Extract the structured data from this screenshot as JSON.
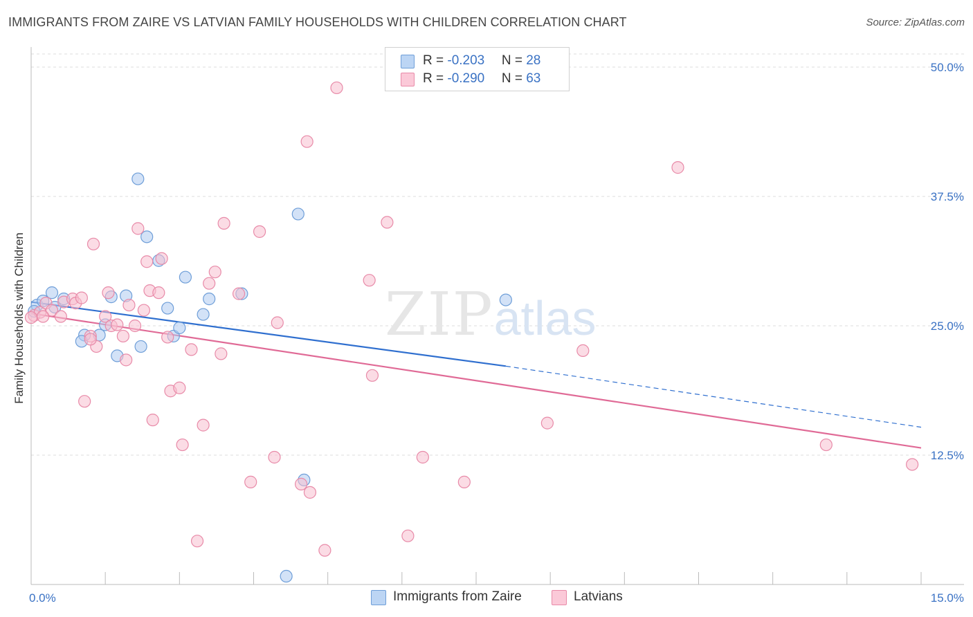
{
  "title": "IMMIGRANTS FROM ZAIRE VS LATVIAN FAMILY HOUSEHOLDS WITH CHILDREN CORRELATION CHART",
  "source": "Source: ZipAtlas.com",
  "watermark": {
    "zip": "ZIP",
    "atlas": "atlas"
  },
  "legend": {
    "series1": {
      "r_label": "R = ",
      "r_value": "-0.203",
      "n_label": "N = ",
      "n_value": "28"
    },
    "series2": {
      "r_label": "R = ",
      "r_value": "-0.290",
      "n_label": "N = ",
      "n_value": "63"
    }
  },
  "bottom_legend": {
    "series1": "Immigrants from Zaire",
    "series2": "Latvians"
  },
  "colors": {
    "blue_fill": "#aecbf0",
    "blue_stroke": "#6e9ed8",
    "blue_line": "#2f6fcf",
    "pink_fill": "#f7bfd0",
    "pink_stroke": "#e88aa8",
    "pink_line": "#e06a96",
    "tick_label": "#3a72c4",
    "grid": "#dddddd"
  },
  "chart_data": {
    "type": "scatter",
    "ylabel": "Family Households with Children",
    "xlim": [
      0,
      15
    ],
    "ylim": [
      0,
      50
    ],
    "x_tick_labels": [
      "0.0%",
      "15.0%"
    ],
    "y_ticks": [
      12.5,
      25.0,
      37.5,
      50.0
    ],
    "y_tick_labels": [
      "12.5%",
      "25.0%",
      "37.5%",
      "50.0%"
    ],
    "grid": true,
    "series": [
      {
        "name": "Immigrants from Zaire",
        "trend": {
          "x": [
            0,
            8.0
          ],
          "y": [
            27.3,
            21.1
          ],
          "dashed_to": [
            15.0,
            15.2
          ]
        },
        "points": [
          [
            0.1,
            27.0
          ],
          [
            0.2,
            27.4
          ],
          [
            0.35,
            28.2
          ],
          [
            0.4,
            26.8
          ],
          [
            0.55,
            27.6
          ],
          [
            0.9,
            24.1
          ],
          [
            1.15,
            24.1
          ],
          [
            1.25,
            25.1
          ],
          [
            1.35,
            27.8
          ],
          [
            1.45,
            22.1
          ],
          [
            1.6,
            27.9
          ],
          [
            1.8,
            39.2
          ],
          [
            1.85,
            23.0
          ],
          [
            1.95,
            33.6
          ],
          [
            2.15,
            31.3
          ],
          [
            2.3,
            26.7
          ],
          [
            2.4,
            24.0
          ],
          [
            2.5,
            24.8
          ],
          [
            2.6,
            29.7
          ],
          [
            2.9,
            26.1
          ],
          [
            3.0,
            27.6
          ],
          [
            3.55,
            28.1
          ],
          [
            4.5,
            35.8
          ],
          [
            4.6,
            10.1
          ],
          [
            0.85,
            23.5
          ],
          [
            8.0,
            27.5
          ],
          [
            4.3,
            0.8
          ],
          [
            0.05,
            26.4
          ]
        ]
      },
      {
        "name": "Latvians",
        "trend": {
          "x": [
            0,
            15.0
          ],
          "y": [
            26.2,
            13.2
          ]
        },
        "points": [
          [
            0.05,
            26.0
          ],
          [
            0.15,
            26.3
          ],
          [
            0.25,
            27.2
          ],
          [
            0.35,
            26.5
          ],
          [
            0.5,
            25.9
          ],
          [
            0.55,
            27.3
          ],
          [
            0.7,
            27.6
          ],
          [
            0.75,
            27.2
          ],
          [
            0.85,
            27.7
          ],
          [
            0.9,
            17.7
          ],
          [
            1.0,
            24.0
          ],
          [
            1.05,
            32.9
          ],
          [
            1.1,
            23.0
          ],
          [
            1.25,
            25.9
          ],
          [
            1.3,
            28.2
          ],
          [
            1.35,
            25.0
          ],
          [
            1.45,
            25.1
          ],
          [
            1.55,
            24.0
          ],
          [
            1.6,
            21.7
          ],
          [
            1.65,
            27.0
          ],
          [
            1.75,
            25.0
          ],
          [
            1.8,
            34.4
          ],
          [
            1.9,
            26.5
          ],
          [
            1.95,
            31.2
          ],
          [
            2.0,
            28.4
          ],
          [
            2.05,
            15.9
          ],
          [
            2.15,
            28.2
          ],
          [
            2.2,
            31.5
          ],
          [
            2.3,
            23.9
          ],
          [
            2.35,
            18.7
          ],
          [
            2.5,
            19.0
          ],
          [
            2.55,
            13.5
          ],
          [
            2.7,
            22.7
          ],
          [
            2.8,
            4.2
          ],
          [
            2.9,
            15.4
          ],
          [
            3.0,
            29.1
          ],
          [
            3.1,
            30.2
          ],
          [
            3.2,
            22.3
          ],
          [
            3.25,
            34.9
          ],
          [
            3.5,
            28.1
          ],
          [
            3.7,
            9.9
          ],
          [
            3.85,
            34.1
          ],
          [
            4.1,
            12.3
          ],
          [
            4.15,
            25.3
          ],
          [
            4.55,
            9.7
          ],
          [
            4.65,
            42.8
          ],
          [
            4.7,
            8.9
          ],
          [
            4.95,
            3.3
          ],
          [
            5.15,
            48.0
          ],
          [
            5.7,
            29.4
          ],
          [
            5.75,
            20.2
          ],
          [
            6.0,
            35.0
          ],
          [
            6.35,
            4.7
          ],
          [
            6.6,
            12.3
          ],
          [
            7.3,
            9.9
          ],
          [
            8.7,
            15.6
          ],
          [
            9.3,
            22.6
          ],
          [
            10.9,
            40.3
          ],
          [
            13.4,
            13.5
          ],
          [
            14.85,
            11.6
          ],
          [
            0.0,
            25.8
          ],
          [
            0.2,
            25.9
          ],
          [
            1.0,
            23.7
          ]
        ]
      }
    ]
  }
}
